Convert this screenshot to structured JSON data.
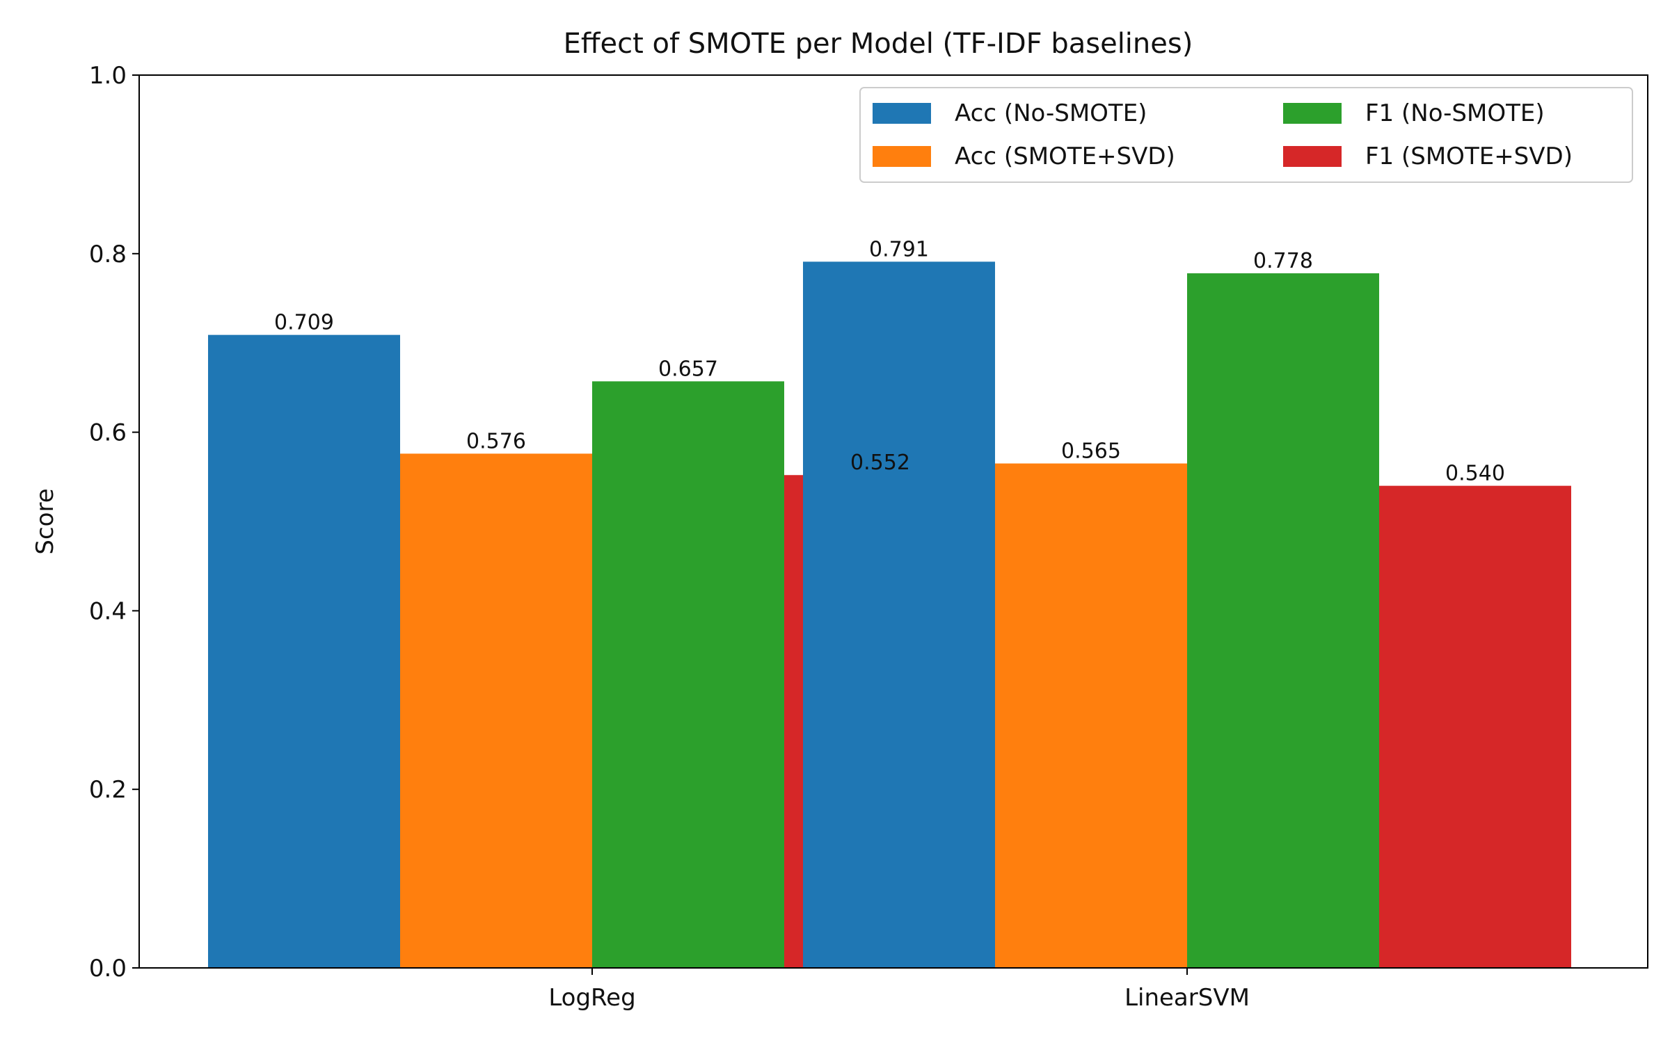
{
  "chart_data": {
    "type": "bar",
    "title": "Effect of SMOTE per Model (TF-IDF baselines)",
    "ylabel": "Score",
    "ylim": [
      0,
      1.0
    ],
    "yticks": [
      "0.0",
      "0.2",
      "0.4",
      "0.6",
      "0.8",
      "1.0"
    ],
    "ytick_values": [
      0.0,
      0.2,
      0.4,
      0.6,
      0.8,
      1.0
    ],
    "legend_position": "top-right",
    "grid": false,
    "groups": [
      {
        "category": "LogReg",
        "bars": [
          {
            "series": "Acc (No-SMOTE)",
            "value": 0.709,
            "label": "0.709"
          },
          {
            "series": "Acc (SMOTE+SVD)",
            "value": 0.576,
            "label": "0.576"
          },
          {
            "series": "F1 (No-SMOTE)",
            "value": 0.657,
            "label": "0.657"
          },
          {
            "series": "F1 (SMOTE+SVD)",
            "value": 0.552,
            "label": "0.552"
          }
        ]
      },
      {
        "category": "LinearSVM",
        "bars": [
          {
            "series": "Acc (No-SMOTE)",
            "value": 0.791,
            "label": "0.791"
          },
          {
            "series": "Acc (SMOTE+SVD)",
            "value": 0.565,
            "label": "0.565"
          },
          {
            "series": "F1 (No-SMOTE)",
            "value": 0.778,
            "label": "0.778"
          },
          {
            "series": "F1 (SMOTE+SVD)",
            "value": 0.54,
            "label": "0.540"
          }
        ]
      }
    ],
    "series": [
      {
        "name": "Acc (No-SMOTE)",
        "color": "#1f77b4"
      },
      {
        "name": "Acc (SMOTE+SVD)",
        "color": "#ff7f0e"
      },
      {
        "name": "F1 (No-SMOTE)",
        "color": "#2ca02c"
      },
      {
        "name": "F1 (SMOTE+SVD)",
        "color": "#d62728"
      }
    ]
  }
}
